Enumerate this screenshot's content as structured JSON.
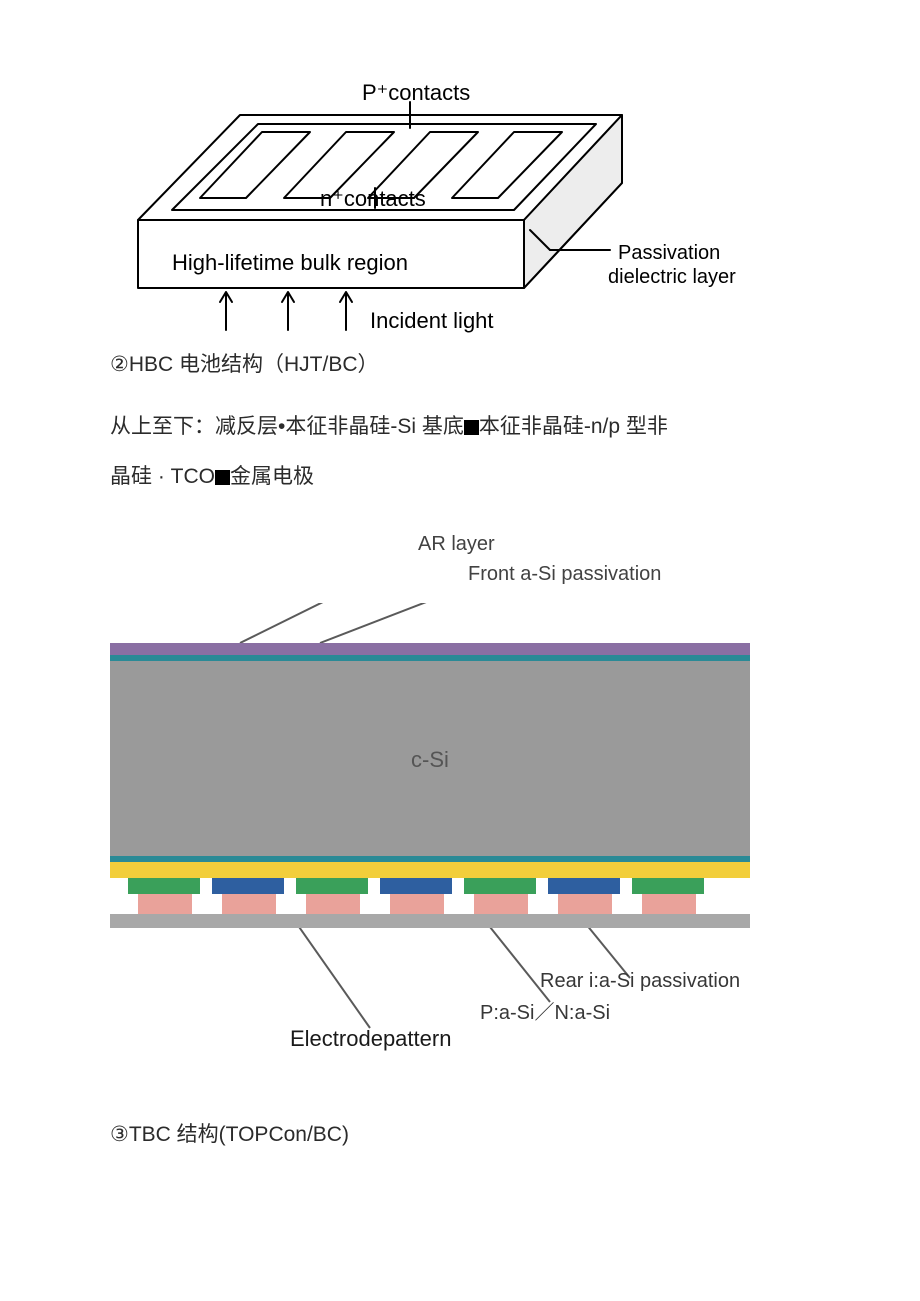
{
  "figure1": {
    "labels": {
      "p_contacts": "P⁺contacts",
      "n_contacts": "n⁺contacts",
      "bulk": "High-lifetime bulk region",
      "passivation_line1": "Passivation",
      "passivation_line2": "dielectric layer",
      "incident": "Incident light"
    },
    "colors": {
      "stroke": "#000000",
      "bg": "#ffffff",
      "shade": "#ededed"
    },
    "line_width": 2
  },
  "text": {
    "heading1": "②HBC 电池结构（HJT/BC）",
    "body_indent": "从上至下：减反层•本征非晶硅-Si 基底",
    "body_after_sq1": "本征非晶硅-n/p 型非",
    "body_line2_pre": "晶硅 · TCO",
    "body_line2_post": "金属电极",
    "heading2": "③TBC 结构(TOPCon/BC)"
  },
  "figure2": {
    "labels": {
      "ar": "AR layer",
      "front_pass": "Front a-Si passivation",
      "csi": "c-Si",
      "rear_pass": "Rear i:a-Si passivation",
      "pn": "P:a-Si／N:a-Si",
      "electrode": "Electrodepattern"
    },
    "colors": {
      "ar_layer": "#8a6fa3",
      "front_pass": "#2a8a96",
      "csi": "#9a9a9a",
      "rear_pass_i": "#2a8a96",
      "yellow_layer": "#f2ce3b",
      "green_seg": "#3aa05a",
      "blue_seg": "#2e5fa0",
      "pink_seg": "#e9a29a",
      "grey_base": "#a8a8a8",
      "gap": "#ffffff",
      "leader": "#5a5a5a"
    },
    "dims": {
      "ar_h": 12,
      "front_h": 6,
      "csi_h": 195,
      "rear_i_h": 6,
      "yellow_h": 16,
      "gb_row_h": 16,
      "pink_row_h": 20,
      "base_h": 14,
      "seg_w": 72,
      "gap_w": 12,
      "first_gap": 18,
      "pink_w": 54,
      "pink_gap": 30
    }
  }
}
